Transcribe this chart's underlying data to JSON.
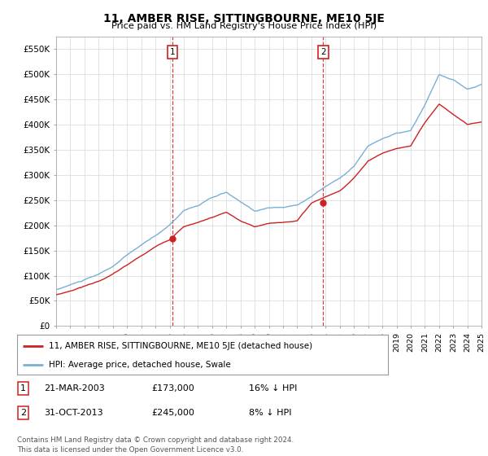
{
  "title": "11, AMBER RISE, SITTINGBOURNE, ME10 5JE",
  "subtitle": "Price paid vs. HM Land Registry's House Price Index (HPI)",
  "ylim": [
    0,
    575000
  ],
  "yticks": [
    0,
    50000,
    100000,
    150000,
    200000,
    250000,
    300000,
    350000,
    400000,
    450000,
    500000,
    550000
  ],
  "ytick_labels": [
    "£0",
    "£50K",
    "£100K",
    "£150K",
    "£200K",
    "£250K",
    "£300K",
    "£350K",
    "£400K",
    "£450K",
    "£500K",
    "£550K"
  ],
  "background_color": "#ffffff",
  "plot_bg_color": "#ffffff",
  "grid_color": "#d8d8d8",
  "red_line_color": "#cc2222",
  "blue_line_color": "#7ab0d4",
  "legend_line1": "11, AMBER RISE, SITTINGBOURNE, ME10 5JE (detached house)",
  "legend_line2": "HPI: Average price, detached house, Swale",
  "table_row1_num": "1",
  "table_row1_date": "21-MAR-2003",
  "table_row1_price": "£173,000",
  "table_row1_hpi": "16% ↓ HPI",
  "table_row2_num": "2",
  "table_row2_date": "31-OCT-2013",
  "table_row2_price": "£245,000",
  "table_row2_hpi": "8% ↓ HPI",
  "footer": "Contains HM Land Registry data © Crown copyright and database right 2024.\nThis data is licensed under the Open Government Licence v3.0.",
  "x_start_year": 1995,
  "x_end_year": 2025,
  "hpi_anchors_year": [
    1995,
    1996,
    1997,
    1998,
    1999,
    2000,
    2001,
    2002,
    2003,
    2004,
    2005,
    2006,
    2007,
    2008,
    2009,
    2010,
    2011,
    2012,
    2013,
    2014,
    2015,
    2016,
    2017,
    2018,
    2019,
    2020,
    2021,
    2022,
    2023,
    2024,
    2025
  ],
  "hpi_anchors_val": [
    72000,
    82000,
    92000,
    102000,
    118000,
    140000,
    160000,
    178000,
    200000,
    230000,
    240000,
    255000,
    265000,
    245000,
    228000,
    235000,
    235000,
    240000,
    258000,
    278000,
    295000,
    320000,
    360000,
    375000,
    385000,
    390000,
    440000,
    500000,
    490000,
    470000,
    480000
  ],
  "red_anchors_year": [
    1995,
    1996,
    1997,
    1998,
    1999,
    2000,
    2001,
    2002,
    2003,
    2004,
    2005,
    2006,
    2007,
    2008,
    2009,
    2010,
    2011,
    2012,
    2013,
    2014,
    2015,
    2016,
    2017,
    2018,
    2019,
    2020,
    2021,
    2022,
    2023,
    2024,
    2025
  ],
  "red_anchors_val": [
    62000,
    70000,
    80000,
    90000,
    104000,
    122000,
    140000,
    158000,
    173000,
    200000,
    208000,
    218000,
    228000,
    210000,
    198000,
    204000,
    206000,
    210000,
    245000,
    258000,
    270000,
    295000,
    330000,
    345000,
    355000,
    360000,
    405000,
    440000,
    420000,
    400000,
    405000
  ],
  "sale1_year": 2003.21,
  "sale1_value": 173000,
  "sale2_year": 2013.83,
  "sale2_value": 245000
}
